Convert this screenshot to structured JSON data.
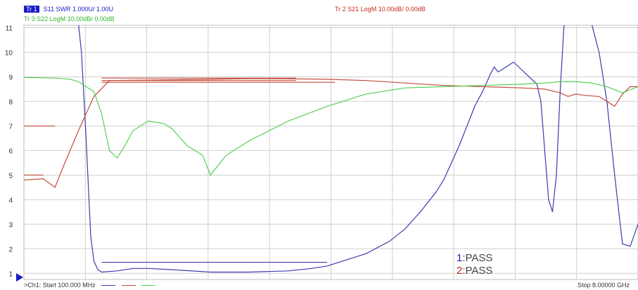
{
  "header": {
    "tr1": {
      "badge": "Tr 1",
      "text": "S11 SWR 1.000U/ 1.00U",
      "color": "#1a1ac8"
    },
    "tr2": {
      "text": "Tr 2  S21 LogM 10.00dB/ 0.00dB",
      "color": "#c8281e"
    },
    "tr3": {
      "text": "Tr 3  S22 LogM 10.00dB/ 0.00dB",
      "color": "#2fb52f"
    }
  },
  "footer": {
    "start": ">Ch1: Start  100.000 MHz",
    "stop": "Stop  8.00000 GHz"
  },
  "pass": [
    {
      "num": "1",
      "label": ":PASS",
      "color": "#1a1ac8"
    },
    {
      "num": "2",
      "label": ":PASS",
      "color": "#c8281e"
    }
  ],
  "colors": {
    "tr1": "#3b3bb0",
    "tr2": "#c44a3a",
    "tr3": "#55d055",
    "grid": "#cfcfcf",
    "axis": "#1a1ac8"
  },
  "chart_data": {
    "type": "line",
    "xlabel": "",
    "ylabel": "",
    "xlim": [
      0.1,
      8.0
    ],
    "ylim": [
      0.75,
      11.1
    ],
    "ytick_labels": [
      "1",
      "2",
      "3",
      "4",
      "5",
      "6",
      "7",
      "8",
      "9",
      "10",
      "11"
    ],
    "x_divisions": 10,
    "grid": true,
    "series": [
      {
        "key": "tr1",
        "x": [
          0.1,
          0.8,
          0.84,
          0.9,
          0.96,
          1.0,
          1.05,
          1.1,
          1.3,
          1.5,
          1.7,
          2.0,
          2.5,
          3.0,
          3.5,
          3.8,
          4.0,
          4.3,
          4.5,
          4.8,
          5.0,
          5.2,
          5.4,
          5.5,
          5.6,
          5.7,
          5.8,
          5.9,
          6.0,
          6.1,
          6.15,
          6.2,
          6.3,
          6.4,
          6.5,
          6.6,
          6.7,
          6.75,
          6.8,
          6.85,
          6.9,
          6.95,
          7.0,
          7.05,
          7.1,
          7.15,
          7.2,
          7.25,
          7.3,
          7.4,
          7.5,
          7.6,
          7.7,
          7.8,
          7.9,
          8.0
        ],
        "y": [
          11.2,
          11.2,
          10.0,
          6.5,
          2.5,
          1.5,
          1.15,
          1.05,
          1.1,
          1.2,
          1.2,
          1.15,
          1.05,
          1.05,
          1.1,
          1.2,
          1.3,
          1.6,
          1.8,
          2.3,
          2.8,
          3.5,
          4.3,
          4.8,
          5.5,
          6.2,
          7.0,
          7.8,
          8.4,
          9.1,
          9.4,
          9.2,
          9.4,
          9.6,
          9.3,
          9.0,
          8.7,
          8.0,
          6.0,
          4.0,
          3.5,
          5.0,
          8.5,
          11.2,
          11.2,
          11.2,
          11.2,
          11.2,
          11.2,
          11.2,
          10.0,
          8.0,
          5.0,
          2.2,
          2.1,
          3.0
        ]
      },
      {
        "key": "tr2",
        "x": [
          0.1,
          0.35,
          0.5,
          0.6,
          0.8,
          1.0,
          1.2,
          2.0,
          2.5,
          3.0,
          3.5,
          4.0,
          4.5,
          5.0,
          5.5,
          6.0,
          6.5,
          6.8,
          7.0,
          7.1,
          7.2,
          7.3,
          7.5,
          7.6,
          7.7,
          7.8,
          7.9,
          8.0
        ],
        "y": [
          4.8,
          4.85,
          4.5,
          5.3,
          6.8,
          8.2,
          8.85,
          8.88,
          8.9,
          8.93,
          8.92,
          8.9,
          8.85,
          8.75,
          8.65,
          8.6,
          8.55,
          8.5,
          8.35,
          8.2,
          8.3,
          8.25,
          8.2,
          8.0,
          7.8,
          8.3,
          8.6,
          8.6
        ]
      },
      {
        "key": "tr3",
        "x": [
          0.1,
          0.5,
          0.7,
          0.8,
          1.0,
          1.1,
          1.2,
          1.3,
          1.4,
          1.5,
          1.7,
          1.9,
          2.0,
          2.2,
          2.4,
          2.5,
          2.7,
          3.0,
          3.5,
          4.0,
          4.5,
          5.0,
          5.5,
          6.0,
          6.5,
          6.8,
          7.0,
          7.2,
          7.4,
          7.6,
          7.8,
          8.0
        ],
        "y": [
          8.98,
          8.95,
          8.9,
          8.8,
          8.4,
          7.5,
          6.0,
          5.7,
          6.2,
          6.8,
          7.2,
          7.1,
          6.9,
          6.2,
          5.8,
          5.0,
          5.8,
          6.4,
          7.2,
          7.8,
          8.3,
          8.55,
          8.6,
          8.65,
          8.7,
          8.75,
          8.8,
          8.8,
          8.75,
          8.6,
          8.35,
          8.6
        ]
      }
    ],
    "limit_lines": [
      {
        "key": "tr1",
        "segments": [
          {
            "x": [
              1.1,
              4.0
            ],
            "y": 1.45
          }
        ]
      },
      {
        "key": "tr2",
        "segments": [
          {
            "x": [
              0.1,
              0.5
            ],
            "y": 7.0
          },
          {
            "x": [
              0.1,
              0.35
            ],
            "y": 5.0
          },
          {
            "x": [
              1.1,
              3.6
            ],
            "y": 8.95
          },
          {
            "x": [
              1.1,
              3.6
            ],
            "y": 8.85
          },
          {
            "x": [
              1.1,
              4.1
            ],
            "y": 8.78
          }
        ]
      }
    ]
  }
}
